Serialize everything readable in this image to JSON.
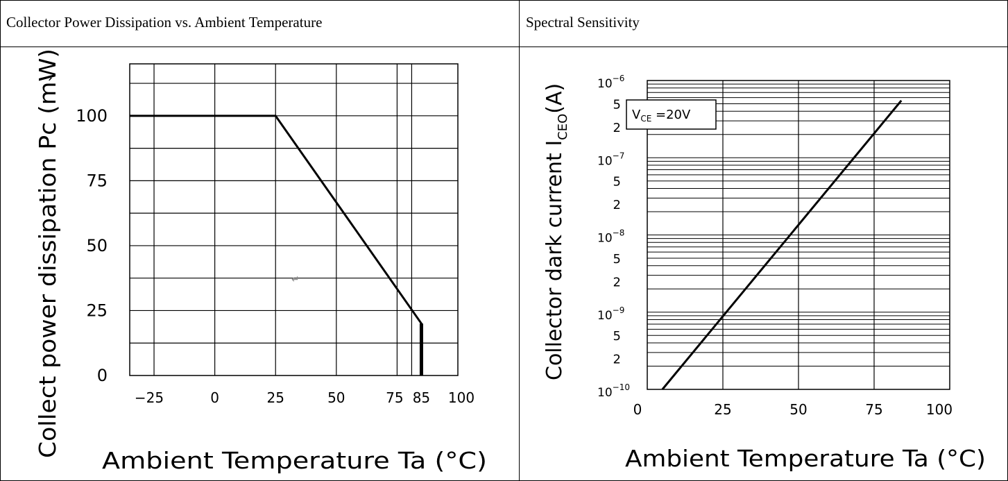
{
  "cells": {
    "left_title": "Collector Power Dissipation vs. Ambient Temperature",
    "right_title": "Spectral Sensitivity"
  },
  "stray_mark": "↵",
  "chart_data": [
    {
      "type": "line",
      "title": "Collector Power Dissipation vs. Ambient Temperature",
      "xlabel": "Ambient Temperature Ta (°C)",
      "ylabel": "Collect power dissipation Pc  (mW)",
      "ylabel_mark": "´",
      "xlim": [
        -35,
        100
      ],
      "ylim": [
        0,
        120
      ],
      "x_ticks": [
        "−25",
        "0",
        "25",
        "50",
        "75",
        "85",
        "100"
      ],
      "y_ticks": [
        "0",
        "25",
        "50",
        "75",
        "100"
      ],
      "grid": true,
      "series": [
        {
          "x": [
            -35,
            25,
            85,
            85
          ],
          "y": [
            100,
            100,
            20,
            0
          ]
        }
      ]
    },
    {
      "type": "line",
      "title": "Spectral Sensitivity",
      "xlabel": "Ambient Temperature Ta (°C)",
      "ylabel": "Collector dark current I",
      "ylabel_sub": "CEO",
      "ylabel_unit": "(A)",
      "yscale": "log",
      "xlim": [
        0,
        100
      ],
      "ylim": [
        1e-10,
        1e-06
      ],
      "x_ticks": [
        "0",
        "25",
        "50",
        "75",
        "100"
      ],
      "y_tick_labels": [
        {
          "text": "10",
          "exp": "−6"
        },
        {
          "text": "5"
        },
        {
          "text": "2"
        },
        {
          "text": "10",
          "exp": "−7"
        },
        {
          "text": "5"
        },
        {
          "text": "2"
        },
        {
          "text": "10",
          "exp": "−8"
        },
        {
          "text": "5"
        },
        {
          "text": "2"
        },
        {
          "text": "10",
          "exp": "−9"
        },
        {
          "text": "5"
        },
        {
          "text": "2"
        },
        {
          "text": "10",
          "exp": "−10"
        }
      ],
      "annotation": {
        "text": "V",
        "sub": "CE",
        "rest": " =20V"
      },
      "grid": true,
      "series": [
        {
          "x": [
            5,
            84
          ],
          "y": [
            1e-10,
            5.5e-07
          ]
        }
      ]
    }
  ]
}
